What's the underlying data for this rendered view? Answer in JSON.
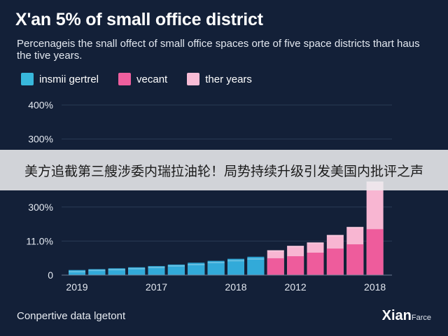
{
  "header": {
    "title": "X'an 5% of small office district",
    "subtitle": "Percenageis the snall offect of small office spaces orte of five space districts thart haus the tive years."
  },
  "legend": [
    {
      "label": "insmii gertrel",
      "color": "#38b8dc"
    },
    {
      "label": "vecant",
      "color": "#ee5f9e"
    },
    {
      "label": "ther years",
      "color": "#f8bcd6"
    }
  ],
  "banner": {
    "text": "美方追截第三艘涉委内瑞拉油轮！局势持续升级引发美国内批评之声"
  },
  "footer": {
    "note": "Conpertive data lgetont",
    "brand": "Xian",
    "brand_sub": "Farce"
  },
  "chart_data": {
    "type": "bar",
    "y_tick_labels": [
      "0",
      "11.0%",
      "300%",
      "300%",
      "300%",
      "400%"
    ],
    "x_tick_labels": [
      "2019",
      "2017",
      "2018",
      "2012",
      "2018"
    ],
    "ylim": [
      0,
      100
    ],
    "bars": [
      {
        "group": "blue",
        "values": [
          2.4,
          2.6,
          3.0
        ]
      },
      {
        "group": "blue",
        "values": [
          3.2,
          3.3,
          3.5
        ]
      },
      {
        "group": "blue",
        "values": [
          3.6,
          3.7,
          4.0
        ]
      },
      {
        "group": "blue",
        "values": [
          4.2,
          4.3,
          4.6
        ]
      },
      {
        "group": "blue",
        "values": [
          4.9,
          5.1,
          5.3
        ]
      },
      {
        "group": "blue",
        "values": [
          5.8,
          6.0,
          6.2
        ]
      },
      {
        "group": "blue",
        "values": [
          6.6,
          6.8,
          7.3
        ]
      },
      {
        "group": "blue",
        "values": [
          7.8,
          8.0,
          8.4
        ]
      },
      {
        "group": "blue",
        "values": [
          8.9,
          9.1,
          9.6
        ]
      },
      {
        "group": "blue",
        "values": [
          9.9,
          10.3,
          10.8
        ]
      },
      {
        "group": "pink",
        "values": [
          14.6,
          9.9
        ]
      },
      {
        "group": "pink",
        "values": [
          17.2,
          11.1
        ]
      },
      {
        "group": "pink",
        "values": [
          19.2,
          13.2
        ]
      },
      {
        "group": "pink",
        "values": [
          23.6,
          15.6
        ]
      },
      {
        "group": "pink",
        "values": [
          28.3,
          18.1
        ]
      },
      {
        "group": "pink",
        "values": [
          55.0,
          27.0
        ]
      }
    ]
  }
}
